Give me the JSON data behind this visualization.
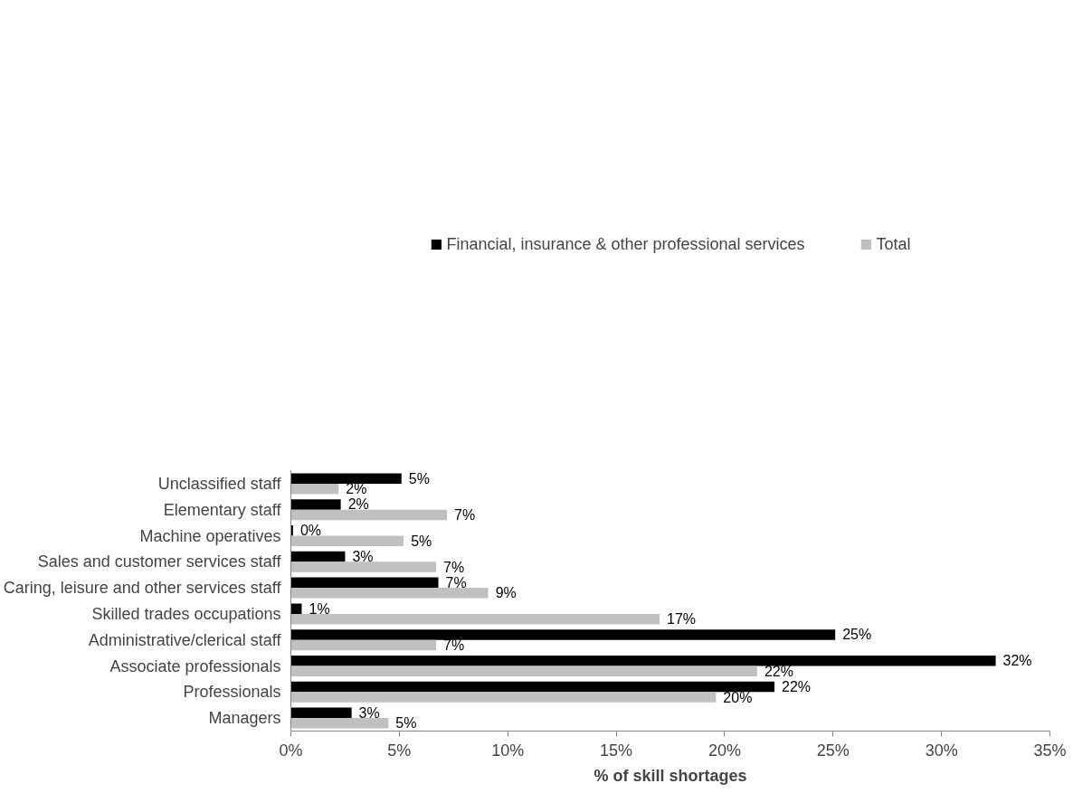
{
  "chart_data": {
    "type": "bar",
    "orientation": "horizontal",
    "xlabel": "% of skill shortages",
    "categories": [
      "Unclassified staff",
      "Elementary staff",
      "Machine operatives",
      "Sales and customer services staff",
      "Caring, leisure and other services staff",
      "Skilled trades occupations",
      "Administrative/clerical staff",
      "Associate professionals",
      "Professionals",
      "Managers"
    ],
    "series": [
      {
        "name": "Financial, insurance & other professional services",
        "color": "#000000",
        "values": [
          5.1,
          2.3,
          0.1,
          2.5,
          6.8,
          0.5,
          25.1,
          32.5,
          22.3,
          2.8
        ],
        "value_labels": [
          "5%",
          "2%",
          "0%",
          "3%",
          "7%",
          "1%",
          "25%",
          "32%",
          "22%",
          "3%"
        ]
      },
      {
        "name": "Total",
        "color": "#c0c0c0",
        "values": [
          2.2,
          7.2,
          5.2,
          6.7,
          9.1,
          17.0,
          6.7,
          21.5,
          19.6,
          4.5
        ],
        "value_labels": [
          "2%",
          "7%",
          "5%",
          "7%",
          "9%",
          "17%",
          "7%",
          "22%",
          "20%",
          "5%"
        ]
      }
    ],
    "xlim": [
      0,
      35
    ],
    "xticks": [
      {
        "value": 0,
        "label": "0%"
      },
      {
        "value": 5,
        "label": "5%"
      },
      {
        "value": 10,
        "label": "10%"
      },
      {
        "value": 15,
        "label": "15%"
      },
      {
        "value": 20,
        "label": "20%"
      },
      {
        "value": 25,
        "label": "25%"
      },
      {
        "value": 30,
        "label": "30%"
      },
      {
        "value": 35,
        "label": "35%"
      }
    ],
    "legend": "top",
    "grid": false
  }
}
